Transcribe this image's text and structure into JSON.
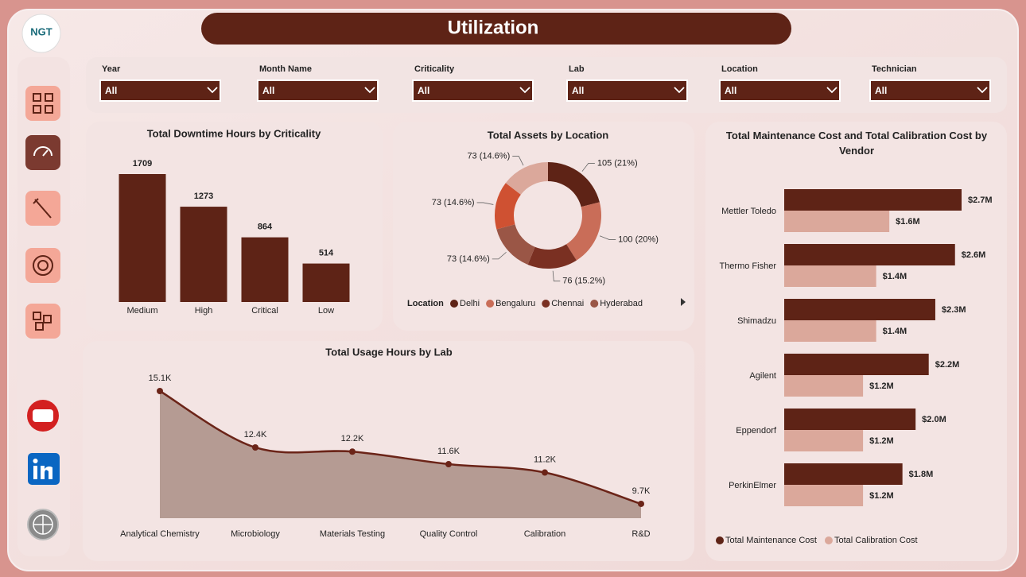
{
  "logo": "NGT",
  "title": "Utilization",
  "filters": [
    {
      "label": "Year",
      "value": "All"
    },
    {
      "label": "Month Name",
      "value": "All"
    },
    {
      "label": "Criticality",
      "value": "All"
    },
    {
      "label": "Lab",
      "value": "All"
    },
    {
      "label": "Location",
      "value": "All"
    },
    {
      "label": "Technician",
      "value": "All"
    }
  ],
  "chart_data": [
    {
      "type": "bar",
      "title": "Total Downtime Hours by Criticality",
      "categories": [
        "Medium",
        "High",
        "Critical",
        "Low"
      ],
      "values": [
        1709,
        1273,
        864,
        514
      ],
      "color": "#5e2316"
    },
    {
      "type": "pie",
      "title": "Total Assets by Location",
      "legend_title": "Location",
      "categories": [
        "Delhi",
        "Bengaluru",
        "Chennai",
        "Hyderabad",
        null,
        null
      ],
      "values": [
        105,
        100,
        76,
        73,
        73,
        73
      ],
      "value_labels": [
        "105 (21%)",
        "100 (20%)",
        "76 (15.2%)",
        "73 (14.6%)",
        "73 (14.6%)",
        "73 (14.6%)"
      ],
      "colors": [
        "#5e2316",
        "#c96d58",
        "#7a3022",
        "#9a5646",
        "#cf5132",
        "#dba89b"
      ]
    },
    {
      "type": "area",
      "title": "Total Usage Hours by Lab",
      "categories": [
        "Analytical Chemistry",
        "Microbiology",
        "Materials Testing",
        "Quality Control",
        "Calibration",
        "R&D"
      ],
      "values": [
        15100,
        12400,
        12200,
        11600,
        11200,
        9700
      ],
      "value_labels": [
        "15.1K",
        "12.4K",
        "12.2K",
        "11.6K",
        "11.2K",
        "9.7K"
      ],
      "color": "#b59b93",
      "line_color": "#6b2418"
    },
    {
      "type": "hbar",
      "title": "Total Maintenance Cost and Total Calibration Cost by Vendor",
      "categories": [
        "Mettler Toledo",
        "Thermo Fisher",
        "Shimadzu",
        "Agilent",
        "Eppendorf",
        "PerkinElmer"
      ],
      "series": [
        {
          "name": "Total Maintenance Cost",
          "color": "#5e2316",
          "values": [
            2700000,
            2600000,
            2300000,
            2200000,
            2000000,
            1800000
          ],
          "value_labels": [
            "$2.7M",
            "$2.6M",
            "$2.3M",
            "$2.2M",
            "$2.0M",
            "$1.8M"
          ]
        },
        {
          "name": "Total Calibration Cost",
          "color": "#dba89b",
          "values": [
            1600000,
            1400000,
            1400000,
            1200000,
            1200000,
            1200000
          ],
          "value_labels": [
            "$1.6M",
            "$1.4M",
            "$1.4M",
            "$1.2M",
            "$1.2M",
            "$1.2M"
          ]
        }
      ],
      "legend": "bottom"
    }
  ]
}
